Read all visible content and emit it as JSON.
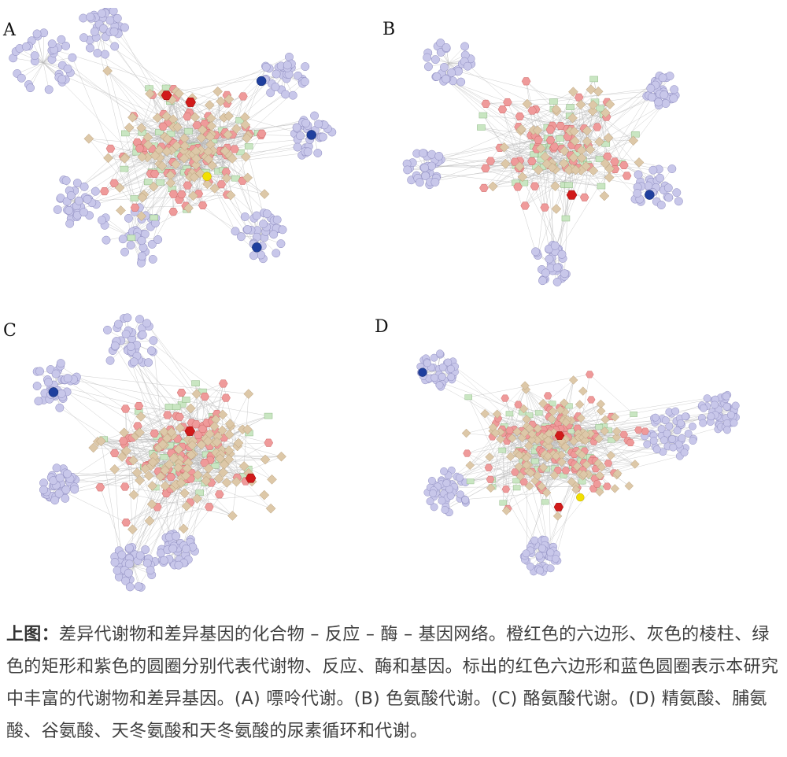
{
  "panels": [
    {
      "id": "A",
      "label": "A",
      "seed": 11,
      "genes": 230,
      "reactions": 95,
      "compounds": 85,
      "enzymes": 55,
      "clusters": [
        [
          55,
          70,
          40
        ],
        [
          130,
          30,
          30
        ],
        [
          360,
          85,
          30
        ],
        [
          400,
          165,
          28
        ],
        [
          165,
          290,
          42
        ],
        [
          330,
          290,
          32
        ],
        [
          95,
          245,
          30
        ]
      ],
      "highlight_compounds": 2,
      "highlight_genes": 3,
      "yellow": 1
    },
    {
      "id": "B",
      "label": "B",
      "seed": 23,
      "genes": 160,
      "reactions": 55,
      "compounds": 60,
      "enzymes": 45,
      "clusters": [
        [
          90,
          75,
          30
        ],
        [
          355,
          235,
          32
        ],
        [
          220,
          330,
          25
        ],
        [
          60,
          210,
          25
        ],
        [
          360,
          110,
          22
        ]
      ],
      "highlight_compounds": 1,
      "highlight_genes": 1,
      "yellow": 0
    },
    {
      "id": "C",
      "label": "C",
      "seed": 37,
      "genes": 190,
      "reactions": 110,
      "compounds": 80,
      "enzymes": 40,
      "clusters": [
        [
          165,
          45,
          35
        ],
        [
          70,
          100,
          30
        ],
        [
          75,
          225,
          22
        ],
        [
          170,
          330,
          28
        ],
        [
          225,
          310,
          24
        ]
      ],
      "highlight_compounds": 2,
      "highlight_genes": 1,
      "yellow": 0
    },
    {
      "id": "D",
      "label": "D",
      "seed": 53,
      "genes": 240,
      "reactions": 130,
      "compounds": 115,
      "enzymes": 60,
      "clusters": [
        [
          490,
          140,
          28
        ],
        [
          420,
          170,
          35
        ],
        [
          95,
          80,
          25
        ],
        [
          110,
          250,
          30
        ],
        [
          240,
          340,
          25
        ]
      ],
      "highlight_compounds": 2,
      "highlight_genes": 1,
      "yellow": 1
    }
  ],
  "colors": {
    "gene": "#c8c7ea",
    "gene_stroke": "#8a88bd",
    "compound": "#ef9a9a",
    "compound_stroke": "#c66",
    "reaction": "#ddc8a8",
    "reaction_stroke": "#b59a74",
    "enzyme": "#c9e6c2",
    "enzyme_stroke": "#8fb985",
    "highlight_compound": "#d11a1a",
    "highlight_gene": "#1f3f9e",
    "yellow": "#f2e000",
    "edge": "#9a9a9a"
  },
  "caption": {
    "lead": "上图：",
    "text": "差异代谢物和差异基因的化合物 – 反应 – 酶 – 基因网络。橙红色的六边形、灰色的棱柱、绿色的矩形和紫色的圆圈分别代表代谢物、反应、酶和基因。标出的红色六边形和蓝色圆圈表示本研究中丰富的代谢物和差异基因。(A) 嘌呤代谢。(B) 色氨酸代谢。(C) 酪氨酸代谢。(D) 精氨酸、脯氨酸、谷氨酸、天冬氨酸和天冬氨酸的尿素循环和代谢。"
  }
}
